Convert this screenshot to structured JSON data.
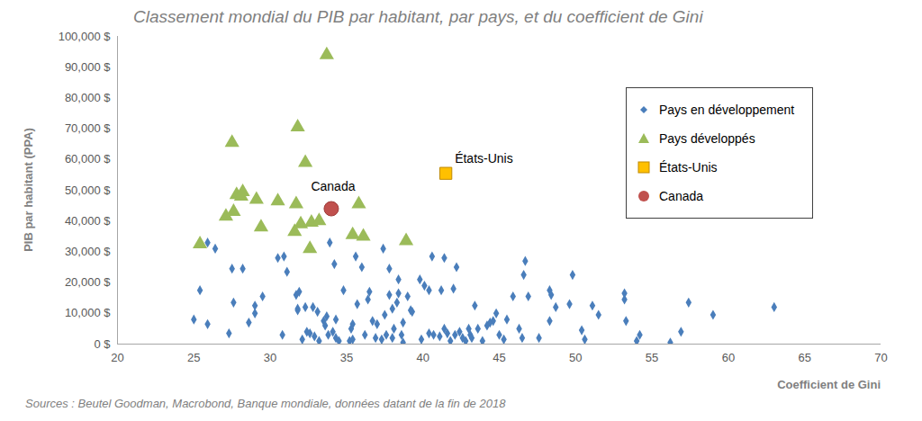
{
  "chart_data": {
    "type": "scatter",
    "title": "Classement mondial du PIB par habitant, par pays, et du coefficient de Gini",
    "xlabel": "Coefficient de Gini",
    "ylabel": "PIB par habitant (PPA)",
    "source": "Sources : Beutel Goodman, Macrobond, Banque mondiale, données datant de la fin de 2018",
    "xlim": [
      20,
      70
    ],
    "xticks": [
      20,
      25,
      30,
      35,
      40,
      45,
      50,
      55,
      60,
      65,
      70
    ],
    "ylim": [
      0,
      100000
    ],
    "yticks": [
      {
        "value": 0,
        "label": "0 $"
      },
      {
        "value": 10000,
        "label": "10,000 $"
      },
      {
        "value": 20000,
        "label": "20,000 $"
      },
      {
        "value": 30000,
        "label": "30,000 $"
      },
      {
        "value": 40000,
        "label": "40,000 $"
      },
      {
        "value": 50000,
        "label": "50,000 $"
      },
      {
        "value": 60000,
        "label": "60,000 $"
      },
      {
        "value": 70000,
        "label": "70,000 $"
      },
      {
        "value": 80000,
        "label": "80,000 $"
      },
      {
        "value": 90000,
        "label": "90,000 $"
      },
      {
        "value": 100000,
        "label": "100,000 $"
      }
    ],
    "grid": false,
    "legend": "top-right",
    "series": [
      {
        "name": "Pays en développement",
        "color": "#4a7ebb",
        "marker": "diamond",
        "x": [
          25,
          25.4,
          25.9,
          25.9,
          26.4,
          27.3,
          27.5,
          27.6,
          28.2,
          28.6,
          29,
          29,
          29.5,
          30.5,
          30.8,
          30.9,
          31.1,
          31.7,
          31.8,
          31.8,
          31.9,
          32.1,
          32.3,
          32.4,
          32.6,
          32.8,
          32.9,
          33.1,
          33.2,
          33.5,
          33.6,
          33.7,
          33.8,
          33.9,
          34.1,
          34.2,
          34.3,
          34.3,
          34.5,
          34.8,
          35.2,
          35.3,
          35.4,
          35.4,
          35.6,
          35.7,
          36,
          36.2,
          36.4,
          36.5,
          36.7,
          36.9,
          37,
          37.3,
          37.4,
          37.5,
          37.6,
          37.8,
          37.8,
          38,
          38,
          38.1,
          38.3,
          38.4,
          38.4,
          38.6,
          38.7,
          38.7,
          39,
          39.2,
          39.3,
          39.8,
          39.9,
          40.1,
          40.4,
          40.4,
          40.6,
          40.7,
          41.1,
          41.2,
          41.4,
          41.4,
          41.6,
          41.8,
          42,
          42.1,
          42.2,
          42.4,
          42.6,
          42.8,
          43,
          43.1,
          43.2,
          43.4,
          43.6,
          43.9,
          44.2,
          44.4,
          44.6,
          44.8,
          45,
          45.3,
          45.5,
          45.9,
          46.3,
          46.5,
          46.6,
          46.7,
          46.9,
          47.6,
          48.3,
          48.3,
          48.4,
          48.7,
          49.6,
          49.8,
          50.4,
          50.6,
          51.1,
          51.5,
          53.2,
          53.2,
          53.3,
          54,
          54.2,
          56.2,
          56.9,
          57.4,
          59,
          63
        ],
        "values": [
          8000,
          17500,
          33000,
          6500,
          31000,
          3500,
          24500,
          13500,
          24500,
          7000,
          12500,
          10000,
          15500,
          28000,
          3000,
          28500,
          23500,
          16000,
          11500,
          11000,
          17000,
          1500,
          12000,
          4000,
          3500,
          12000,
          2500,
          10500,
          1000,
          7500,
          6000,
          9000,
          3000,
          33000,
          4000,
          26000,
          2000,
          8000,
          1000,
          17500,
          1000,
          5000,
          6500,
          1500,
          28500,
          13000,
          25000,
          3000,
          14500,
          17000,
          7500,
          2000,
          6500,
          1500,
          31000,
          9500,
          3000,
          24500,
          16000,
          11500,
          2000,
          5000,
          13500,
          16500,
          21000,
          3000,
          500,
          7000,
          15500,
          11000,
          10500,
          21000,
          1500,
          19000,
          17500,
          3500,
          28500,
          3000,
          2500,
          17500,
          28000,
          5000,
          3500,
          1000,
          18000,
          3000,
          25000,
          4000,
          2000,
          1000,
          5000,
          3000,
          2000,
          12500,
          5000,
          1000,
          6000,
          7000,
          7500,
          10000,
          3000,
          1500,
          8000,
          15500,
          5000,
          2000,
          22500,
          27000,
          15500,
          2000,
          7500,
          17500,
          16000,
          12000,
          13000,
          22500,
          4500,
          1500,
          12500,
          9500,
          14500,
          16500,
          7500,
          1000,
          3000,
          500,
          4000,
          13500,
          9500,
          12000
        ]
      },
      {
        "name": "Pays développés",
        "color": "#9bbb59",
        "marker": "triangle",
        "x": [
          25.4,
          27.1,
          27.5,
          27.6,
          27.8,
          28.1,
          28.2,
          29.1,
          29.4,
          30.5,
          31.6,
          31.7,
          31.8,
          32.0,
          32.3,
          32.6,
          32.7,
          33.2,
          33.7,
          35.4,
          35.8,
          36.1,
          38.9
        ],
        "values": [
          32500,
          41500,
          65500,
          43000,
          48500,
          48000,
          49500,
          47000,
          38000,
          46500,
          36500,
          45500,
          70500,
          39000,
          59000,
          31000,
          39500,
          40000,
          94000,
          35500,
          45500,
          35000,
          33500
        ]
      },
      {
        "name": "États-Unis",
        "color": "#ffc000",
        "marker": "square",
        "x": [
          41.5
        ],
        "values": [
          55500
        ]
      },
      {
        "name": "Canada",
        "color": "#c0504d",
        "marker": "circle",
        "x": [
          34.0
        ],
        "values": [
          44000
        ]
      }
    ],
    "annotations": [
      {
        "text": "Canada",
        "series": "Canada"
      },
      {
        "text": "États-Unis",
        "series": "États-Unis"
      }
    ]
  }
}
